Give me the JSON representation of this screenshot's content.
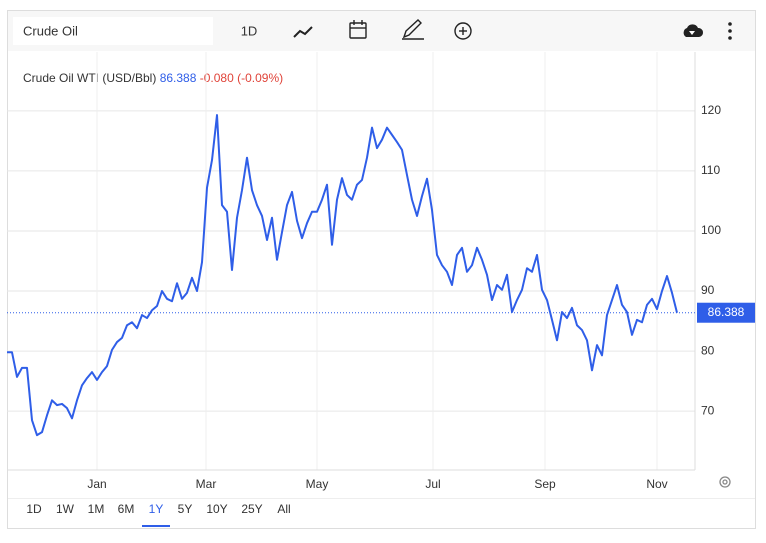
{
  "search": "Crude Oil",
  "interval": "1D",
  "ranges": [
    "1D",
    "1W",
    "1M",
    "6M",
    "1Y",
    "5Y",
    "10Y",
    "25Y",
    "All"
  ],
  "selected_range": 4,
  "chart_data": {
    "type": "line",
    "title": "Crude Oil WTI (USD/Bbl)",
    "last_price": 86.388,
    "change": "-0.080 (-0.09%)",
    "color": "#2f5ee8",
    "values": [
      79.8,
      79.8,
      75.7,
      77.2,
      77.2,
      68.5,
      66,
      66.5,
      69.3,
      71.8,
      71,
      71.2,
      70.5,
      68.8,
      71.8,
      74.3,
      75.5,
      76.5,
      75.2,
      76.5,
      77.5,
      80.2,
      81.5,
      82.2,
      84.3,
      84.8,
      83.8,
      86,
      85.5,
      86.8,
      87.5,
      90,
      88.7,
      88.3,
      91.3,
      88.7,
      89.7,
      92.2,
      90,
      94.8,
      107.2,
      111.8,
      119.3,
      104.3,
      103.2,
      93.5,
      102.2,
      106.8,
      112.2,
      106.8,
      104.3,
      102.5,
      98.5,
      102.2,
      95.2,
      99.8,
      104.3,
      106.5,
      101.7,
      98.8,
      101.3,
      103.2,
      103.2,
      105.2,
      107.7,
      97.7,
      105.2,
      108.8,
      106,
      105.2,
      107.7,
      108.5,
      112.2,
      117.2,
      113.8,
      115.2,
      117.2,
      116,
      114.8,
      113.5,
      109.3,
      105.2,
      102.5,
      105.8,
      108.7,
      103.5,
      96,
      94.3,
      93.2,
      91,
      96,
      97.2,
      93.2,
      94.3,
      97.2,
      95.2,
      92.7,
      88.5,
      91,
      90.2,
      92.7,
      86.5,
      88.5,
      90.2,
      93.8,
      93.2,
      96,
      90.2,
      88.5,
      85.2,
      81.8,
      86.5,
      85.5,
      87.2,
      84.3,
      83.5,
      81.8,
      76.8,
      81,
      79.3,
      86,
      88.5,
      91,
      87.7,
      86.5,
      82.7,
      85.2,
      84.8,
      87.7,
      88.7,
      87,
      90,
      92.5,
      89.7,
      86.388
    ],
    "xlim": [
      0,
      134
    ],
    "xticks": [
      {
        "value": 18,
        "label": "Jan"
      },
      {
        "value": 39.8,
        "label": "Mar"
      },
      {
        "value": 62,
        "label": "May"
      },
      {
        "value": 85.2,
        "label": "Jul"
      },
      {
        "value": 107.6,
        "label": "Sep"
      },
      {
        "value": 130,
        "label": "Nov"
      }
    ],
    "ylim": [
      60.2,
      129.8
    ],
    "yticks": [
      70,
      80,
      90,
      100,
      110,
      120
    ],
    "grid": true
  }
}
